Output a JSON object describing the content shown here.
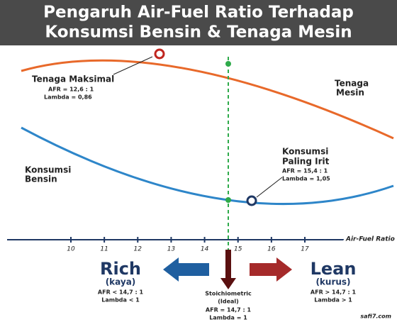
{
  "header": {
    "title_line1": "Pengaruh Air-Fuel Ratio Terhadap",
    "title_line2": "Konsumsi Bensin & Tenaga Mesin"
  },
  "peak_power": {
    "title": "Tenaga Maksimal",
    "afr": "AFR = 12,6 : 1",
    "lambda": "Lambda = 0,86"
  },
  "power_curve": {
    "label_line1": "Tenaga",
    "label_line2": "Mesin"
  },
  "consumption_curve": {
    "label_line1": "Konsumsi",
    "label_line2": "Bensin"
  },
  "min_consumption": {
    "title_line1": "Konsumsi",
    "title_line2": "Paling Irit",
    "afr": "AFR = 15,4 : 1",
    "lambda": "Lambda = 1,05"
  },
  "axis": {
    "label": "Air-Fuel Ratio",
    "ticks": [
      10,
      11,
      12,
      13,
      14,
      15,
      16,
      17
    ]
  },
  "rich": {
    "title": "Rich",
    "subtitle": "(kaya)",
    "afr": "AFR < 14,7 : 1",
    "lambda": "Lambda < 1"
  },
  "lean": {
    "title": "Lean",
    "subtitle": "(kurus)",
    "afr": "AFR > 14,7 : 1",
    "lambda": "Lambda > 1"
  },
  "ideal": {
    "title_line1": "Stoichiometric",
    "title_line2": "(Ideal)",
    "afr": "AFR = 14,7 : 1",
    "lambda": "Lambda = 1"
  },
  "source": "safi7.com"
}
